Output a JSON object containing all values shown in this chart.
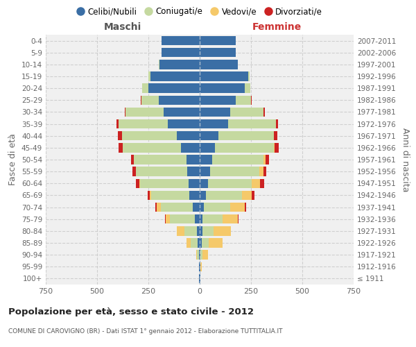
{
  "age_groups": [
    "100+",
    "95-99",
    "90-94",
    "85-89",
    "80-84",
    "75-79",
    "70-74",
    "65-69",
    "60-64",
    "55-59",
    "50-54",
    "45-49",
    "40-44",
    "35-39",
    "30-34",
    "25-29",
    "20-24",
    "15-19",
    "10-14",
    "5-9",
    "0-4"
  ],
  "birth_years": [
    "≤ 1911",
    "1912-1916",
    "1917-1921",
    "1922-1926",
    "1927-1931",
    "1932-1936",
    "1937-1941",
    "1942-1946",
    "1947-1951",
    "1952-1956",
    "1957-1961",
    "1962-1966",
    "1967-1971",
    "1972-1976",
    "1977-1981",
    "1982-1986",
    "1987-1991",
    "1992-1996",
    "1997-2001",
    "2002-2006",
    "2007-2011"
  ],
  "male_celibe": [
    2,
    2,
    5,
    10,
    15,
    25,
    35,
    50,
    55,
    60,
    65,
    90,
    110,
    155,
    175,
    200,
    250,
    240,
    195,
    185,
    185
  ],
  "male_coniugato": [
    0,
    2,
    8,
    35,
    60,
    120,
    155,
    185,
    235,
    250,
    255,
    285,
    270,
    240,
    185,
    85,
    30,
    10,
    3,
    1,
    0
  ],
  "male_vedovo": [
    0,
    0,
    5,
    18,
    35,
    20,
    18,
    8,
    5,
    2,
    1,
    0,
    0,
    0,
    0,
    0,
    0,
    0,
    0,
    0,
    0
  ],
  "male_divorziato": [
    0,
    0,
    0,
    0,
    0,
    5,
    8,
    12,
    15,
    15,
    12,
    20,
    18,
    12,
    5,
    2,
    1,
    0,
    0,
    0,
    0
  ],
  "female_nubile": [
    2,
    3,
    5,
    10,
    12,
    15,
    20,
    30,
    40,
    50,
    60,
    75,
    90,
    140,
    150,
    175,
    220,
    235,
    185,
    175,
    175
  ],
  "female_coniugata": [
    0,
    2,
    10,
    35,
    55,
    95,
    130,
    175,
    215,
    240,
    250,
    285,
    270,
    230,
    160,
    75,
    25,
    8,
    2,
    1,
    0
  ],
  "female_vedova": [
    0,
    5,
    25,
    65,
    85,
    75,
    70,
    50,
    40,
    20,
    10,
    5,
    2,
    1,
    0,
    0,
    0,
    0,
    0,
    0,
    0
  ],
  "female_divorziata": [
    0,
    0,
    0,
    0,
    0,
    5,
    8,
    12,
    18,
    15,
    18,
    20,
    18,
    12,
    6,
    2,
    1,
    0,
    0,
    0,
    0
  ],
  "color_celibe": "#3a6ea5",
  "color_coniugato": "#c5d9a0",
  "color_vedovo": "#f5c96a",
  "color_divorziato": "#cc2222",
  "xlim": 750,
  "xticks": [
    -750,
    -500,
    -250,
    0,
    250,
    500,
    750
  ],
  "title_main": "Popolazione per età, sesso e stato civile - 2012",
  "title_sub": "COMUNE DI CAROVIGNO (BR) - Dati ISTAT 1° gennaio 2012 - Elaborazione TUTTITALIA.IT",
  "label_ylabel_left": "Fasce di età",
  "label_ylabel_right": "Anni di nascita",
  "label_maschi": "Maschi",
  "label_femmine": "Femmine",
  "legend_labels": [
    "Celibi/Nubili",
    "Coniugati/e",
    "Vedovi/e",
    "Divorziati/e"
  ],
  "bg_color": "#f0f0f0",
  "grid_color": "#cccccc"
}
